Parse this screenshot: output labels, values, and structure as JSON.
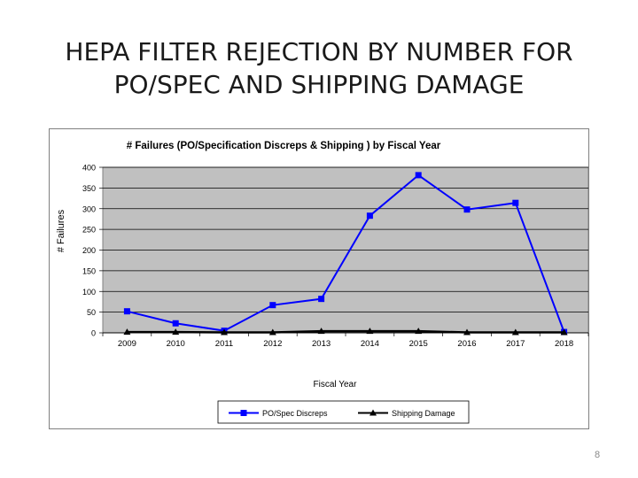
{
  "slide": {
    "title_line1": "HEPA FILTER REJECTION BY NUMBER FOR",
    "title_line2": "PO/SPEC AND SHIPPING DAMAGE",
    "page_number": "8"
  },
  "chart_data": {
    "type": "line",
    "title": "# Failures (PO/Specification Discreps & Shipping ) by Fiscal Year",
    "xlabel": "Fiscal Year",
    "ylabel": "# Failures",
    "categories": [
      "2009",
      "2010",
      "2011",
      "2012",
      "2013",
      "2014",
      "2015",
      "2016",
      "2017",
      "2018"
    ],
    "ylim": [
      0,
      400
    ],
    "yticks": [
      0,
      50,
      100,
      150,
      200,
      250,
      300,
      350,
      400
    ],
    "grid": true,
    "plot_background": "#c0c0c0",
    "legend_position": "bottom",
    "series": [
      {
        "name": "PO/Spec Discreps",
        "color": "#0000ff",
        "marker": "square",
        "values": [
          52,
          23,
          5,
          67,
          82,
          283,
          381,
          298,
          314,
          2
        ]
      },
      {
        "name": "Shipping Damage",
        "color": "#000000",
        "marker": "triangle",
        "values": [
          2,
          2,
          1,
          1,
          4,
          4,
          4,
          1,
          1,
          1
        ]
      }
    ]
  }
}
